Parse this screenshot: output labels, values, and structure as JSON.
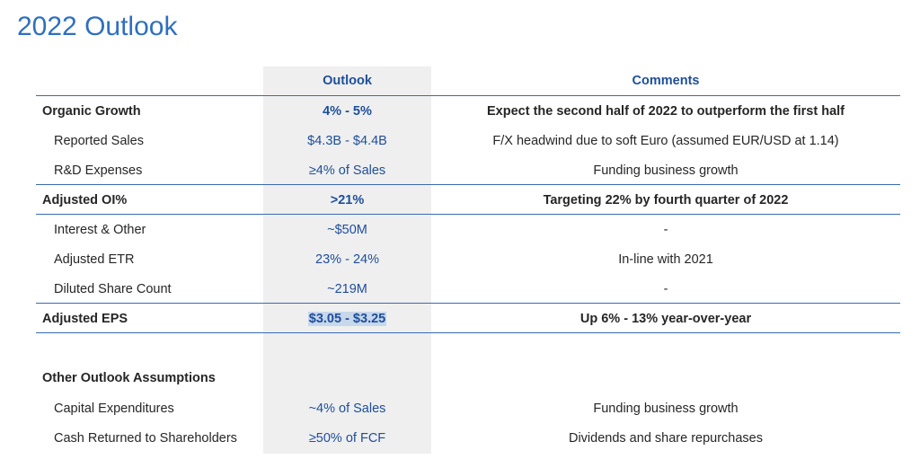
{
  "title": "2022 Outlook",
  "columns": {
    "outlook": "Outlook",
    "comments": "Comments"
  },
  "rows": [
    {
      "label": "Organic Growth",
      "outlook": "4% - 5%",
      "comment": "Expect the second half of 2022 to outperform the first half",
      "bold": true
    },
    {
      "label": "Reported Sales",
      "outlook": "$4.3B - $4.4B",
      "comment": "F/X headwind due to soft Euro (assumed EUR/USD at 1.14)",
      "bold": false
    },
    {
      "label": "R&D Expenses",
      "outlook": "≥4% of Sales",
      "comment": "Funding business growth",
      "bold": false
    },
    {
      "label": "Adjusted OI%",
      "outlook": ">21%",
      "comment": "Targeting 22% by fourth quarter of 2022",
      "bold": true
    },
    {
      "label": "Interest & Other",
      "outlook": "~$50M",
      "comment": "-",
      "bold": false
    },
    {
      "label": "Adjusted ETR",
      "outlook": "23% - 24%",
      "comment": "In-line with 2021",
      "bold": false
    },
    {
      "label": "Diluted Share Count",
      "outlook": "~219M",
      "comment": "-",
      "bold": false
    },
    {
      "label": "Adjusted EPS",
      "outlook": "$3.05 - $3.25",
      "comment": "Up 6% - 13% year-over-year",
      "bold": true
    }
  ],
  "other": {
    "heading": "Other Outlook Assumptions",
    "rows": [
      {
        "label": "Capital Expenditures",
        "outlook": "~4% of Sales",
        "comment": "Funding business growth"
      },
      {
        "label": "Cash Returned to Shareholders",
        "outlook": "≥50% of FCF",
        "comment": "Dividends and share repurchases"
      }
    ]
  }
}
